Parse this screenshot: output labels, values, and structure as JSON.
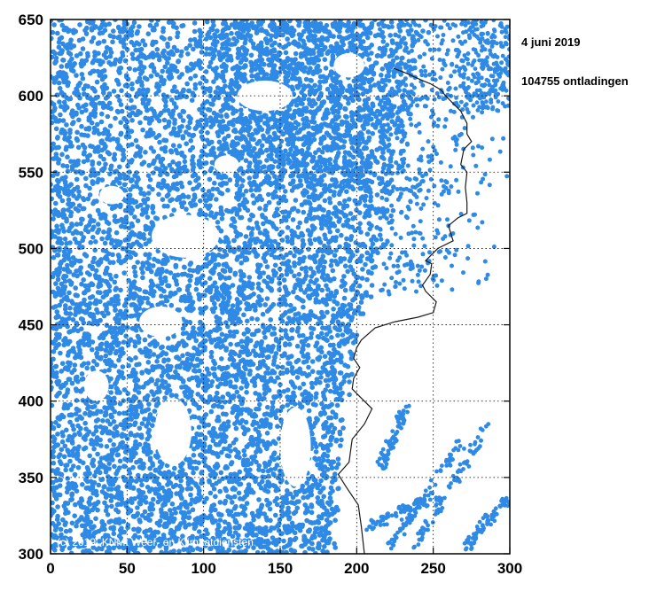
{
  "annotations": {
    "date": "4 juni 2019",
    "discharges": "104755 ontladingen",
    "copyright": "(c) 2019, KNMI Weer- en Klimaatdiensten"
  },
  "colors": {
    "points": "#2f8ae6",
    "coast": "#1a1a1a",
    "grid": "#000000"
  },
  "chart_data": {
    "type": "scatter",
    "title": "",
    "xlabel": "",
    "ylabel": "",
    "xlim": [
      0,
      300
    ],
    "ylim": [
      300,
      650
    ],
    "xticks": [
      0,
      50,
      100,
      150,
      200,
      250,
      300
    ],
    "yticks": [
      300,
      350,
      400,
      450,
      500,
      550,
      600,
      650
    ],
    "grid": true,
    "marker_color": "#2f8ae6",
    "density_regions": [
      {
        "name": "main-band",
        "x": [
          0,
          215
        ],
        "y": [
          300,
          650
        ],
        "density": "saturated"
      },
      {
        "name": "north-east",
        "x": [
          215,
          300
        ],
        "y": [
          470,
          650
        ],
        "density": "sparse"
      },
      {
        "name": "south-east-streaks",
        "x": [
          205,
          300
        ],
        "y": [
          300,
          390
        ],
        "density": "very sparse"
      }
    ],
    "coastline": [
      [
        205,
        300
      ],
      [
        203,
        318
      ],
      [
        201,
        332
      ],
      [
        193,
        344
      ],
      [
        188,
        352
      ],
      [
        195,
        360
      ],
      [
        197,
        375
      ],
      [
        205,
        385
      ],
      [
        210,
        395
      ],
      [
        203,
        402
      ],
      [
        197,
        408
      ],
      [
        198,
        415
      ],
      [
        202,
        422
      ],
      [
        198,
        428
      ],
      [
        200,
        435
      ],
      [
        203,
        440
      ],
      [
        212,
        448
      ],
      [
        225,
        452
      ],
      [
        240,
        455
      ],
      [
        250,
        458
      ],
      [
        252,
        465
      ],
      [
        245,
        472
      ],
      [
        243,
        476
      ],
      [
        248,
        483
      ],
      [
        249,
        490
      ],
      [
        245,
        492
      ],
      [
        253,
        500
      ],
      [
        263,
        505
      ],
      [
        262,
        508
      ],
      [
        260,
        515
      ],
      [
        266,
        520
      ],
      [
        272,
        523
      ],
      [
        272,
        530
      ],
      [
        271,
        540
      ],
      [
        272,
        550
      ],
      [
        268,
        555
      ],
      [
        270,
        565
      ],
      [
        275,
        570
      ],
      [
        272,
        575
      ],
      [
        272,
        582
      ],
      [
        268,
        590
      ],
      [
        263,
        595
      ],
      [
        258,
        600
      ],
      [
        255,
        604
      ],
      [
        248,
        608
      ],
      [
        243,
        610
      ],
      [
        232,
        615
      ],
      [
        224,
        618
      ]
    ]
  }
}
